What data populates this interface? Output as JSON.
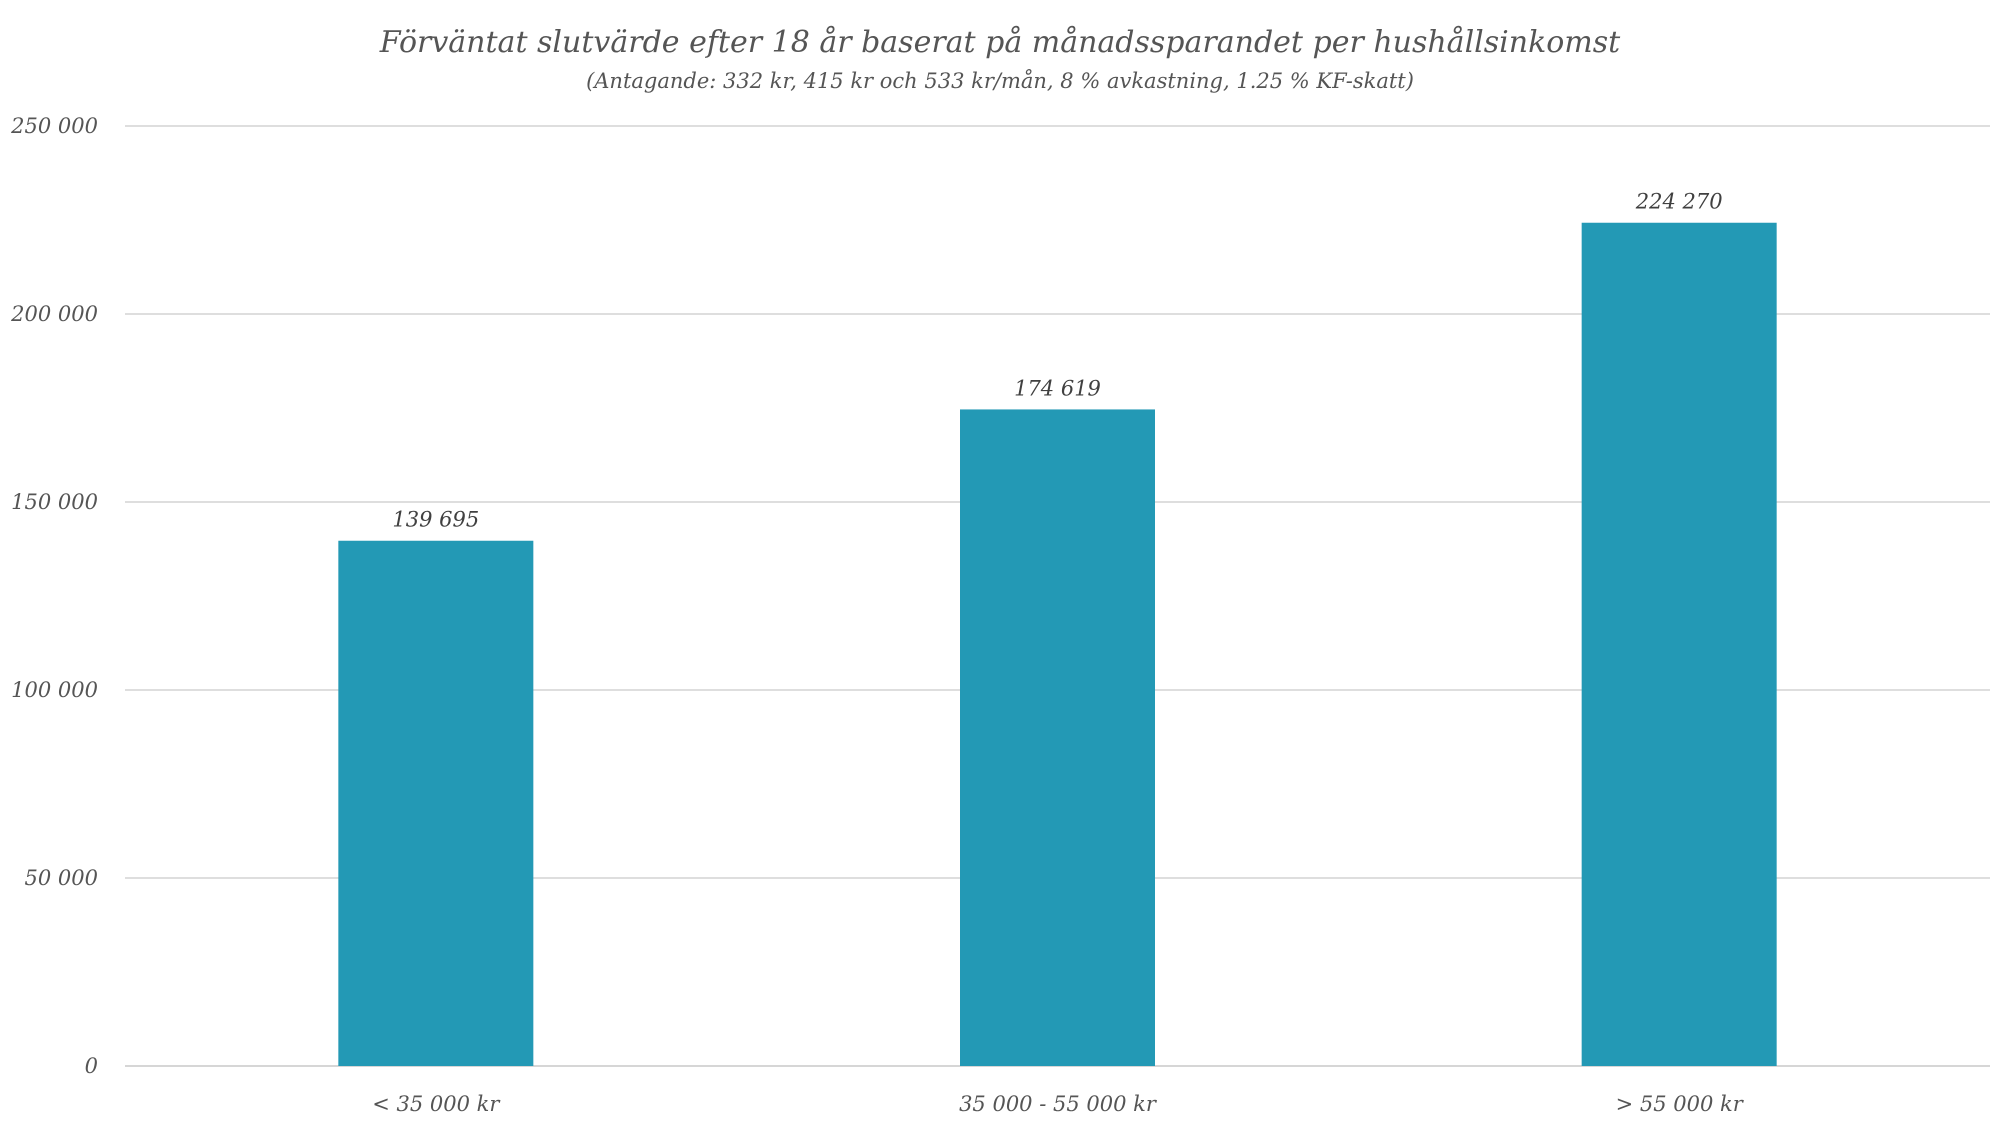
{
  "chart_data": {
    "type": "bar",
    "title": "Förväntat slutvärde efter 18 år baserat på månadssparandet per hushållsinkomst",
    "subtitle": "(Antagande: 332 kr, 415 kr och 533 kr/mån, 8 % avkastning, 1.25 % KF-skatt)",
    "categories": [
      "< 35 000 kr",
      "35 000 - 55 000 kr",
      "> 55 000 kr"
    ],
    "values": [
      139695,
      174619,
      224270
    ],
    "data_labels": [
      "139 695",
      "174 619",
      "224 270"
    ],
    "xlabel": "",
    "ylabel": "",
    "ylim": [
      0,
      250000
    ],
    "y_ticks": [
      0,
      50000,
      100000,
      150000,
      200000,
      250000
    ],
    "y_tick_labels": [
      "0",
      "50 000",
      "100 000",
      "150 000",
      "200 000",
      "250 000"
    ],
    "bar_color": "#2399b5",
    "grid": true,
    "legend": "none"
  }
}
